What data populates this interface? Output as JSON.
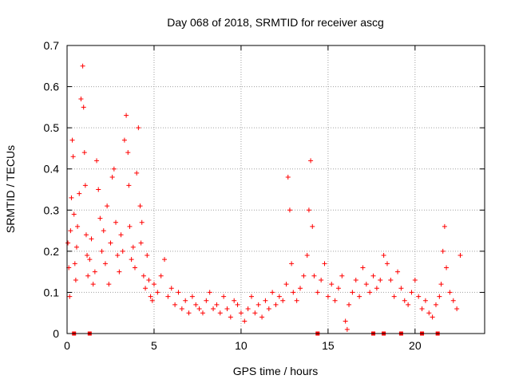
{
  "chart_data": {
    "type": "scatter",
    "title": "Day 068 of 2018, SRMTID for receiver ascg",
    "xlabel": "GPS time / hours",
    "ylabel": "SRMTID / TECUs",
    "xlim": [
      0,
      24
    ],
    "ylim": [
      0,
      0.7
    ],
    "xticks": [
      0,
      5,
      10,
      15,
      20
    ],
    "xtick_labels": [
      "0",
      "5",
      "10",
      "15",
      "20"
    ],
    "yticks": [
      0,
      0.1,
      0.2,
      0.3,
      0.4,
      0.5,
      0.6,
      0.7
    ],
    "ytick_labels": [
      "0",
      "0.1",
      "0.2",
      "0.3",
      "0.4",
      "0.5",
      "0.6",
      "0.7"
    ],
    "grid": true,
    "marker": "+",
    "color": "#ff0000",
    "series": [
      {
        "name": "SRMTID",
        "x": [
          0.05,
          0.1,
          0.15,
          0.2,
          0.25,
          0.3,
          0.35,
          0.4,
          0.45,
          0.5,
          0.55,
          0.6,
          0.7,
          0.8,
          0.9,
          0.95,
          1.0,
          1.05,
          1.1,
          1.15,
          1.2,
          1.3,
          1.4,
          1.5,
          1.6,
          1.7,
          1.8,
          1.9,
          2.0,
          2.1,
          2.2,
          2.3,
          2.4,
          2.5,
          2.6,
          2.7,
          2.8,
          2.9,
          3.0,
          3.1,
          3.2,
          3.3,
          3.4,
          3.5,
          3.55,
          3.6,
          3.7,
          3.8,
          3.9,
          4.0,
          4.1,
          4.2,
          4.25,
          4.3,
          4.4,
          4.5,
          4.6,
          4.7,
          4.8,
          4.9,
          5.0,
          5.2,
          5.4,
          5.6,
          5.8,
          6.0,
          6.2,
          6.4,
          6.6,
          6.8,
          7.0,
          7.2,
          7.4,
          7.6,
          7.8,
          8.0,
          8.2,
          8.4,
          8.6,
          8.8,
          9.0,
          9.2,
          9.4,
          9.6,
          9.8,
          10.0,
          10.2,
          10.4,
          10.6,
          10.8,
          11.0,
          11.2,
          11.4,
          11.6,
          11.8,
          12.0,
          12.2,
          12.4,
          12.6,
          12.7,
          12.8,
          12.9,
          13.0,
          13.2,
          13.4,
          13.6,
          13.8,
          13.9,
          14.0,
          14.1,
          14.2,
          14.4,
          14.6,
          14.8,
          15.0,
          15.2,
          15.4,
          15.6,
          15.8,
          16.0,
          16.1,
          16.2,
          16.4,
          16.6,
          16.8,
          17.0,
          17.2,
          17.4,
          17.6,
          17.8,
          18.0,
          18.2,
          18.4,
          18.6,
          18.8,
          19.0,
          19.2,
          19.4,
          19.6,
          19.8,
          20.0,
          20.2,
          20.4,
          20.6,
          20.8,
          21.0,
          21.2,
          21.4,
          21.5,
          21.6,
          21.7,
          21.8,
          22.0,
          22.2,
          22.4,
          22.6
        ],
        "y": [
          0.22,
          0.16,
          0.09,
          0.25,
          0.33,
          0.47,
          0.43,
          0.29,
          0.17,
          0.13,
          0.21,
          0.26,
          0.34,
          0.57,
          0.65,
          0.55,
          0.44,
          0.36,
          0.24,
          0.19,
          0.14,
          0.18,
          0.23,
          0.12,
          0.15,
          0.42,
          0.35,
          0.28,
          0.2,
          0.25,
          0.17,
          0.31,
          0.12,
          0.22,
          0.38,
          0.4,
          0.27,
          0.19,
          0.15,
          0.24,
          0.2,
          0.47,
          0.53,
          0.44,
          0.36,
          0.26,
          0.18,
          0.21,
          0.16,
          0.39,
          0.5,
          0.31,
          0.22,
          0.27,
          0.14,
          0.11,
          0.19,
          0.13,
          0.09,
          0.08,
          0.12,
          0.1,
          0.14,
          0.18,
          0.09,
          0.11,
          0.07,
          0.1,
          0.06,
          0.08,
          0.05,
          0.09,
          0.07,
          0.06,
          0.05,
          0.08,
          0.1,
          0.06,
          0.07,
          0.05,
          0.09,
          0.06,
          0.04,
          0.08,
          0.07,
          0.05,
          0.03,
          0.06,
          0.09,
          0.05,
          0.07,
          0.04,
          0.08,
          0.06,
          0.1,
          0.07,
          0.09,
          0.08,
          0.12,
          0.38,
          0.3,
          0.17,
          0.1,
          0.08,
          0.11,
          0.14,
          0.19,
          0.3,
          0.42,
          0.26,
          0.14,
          0.1,
          0.13,
          0.17,
          0.09,
          0.12,
          0.08,
          0.11,
          0.14,
          0.03,
          0.01,
          0.07,
          0.1,
          0.13,
          0.09,
          0.16,
          0.12,
          0.1,
          0.14,
          0.11,
          0.13,
          0.19,
          0.17,
          0.13,
          0.09,
          0.15,
          0.11,
          0.08,
          0.07,
          0.1,
          0.13,
          0.09,
          0.06,
          0.08,
          0.05,
          0.04,
          0.07,
          0.09,
          0.12,
          0.2,
          0.26,
          0.16,
          0.1,
          0.08,
          0.06,
          0.19
        ]
      },
      {
        "name": "bottom-markers",
        "x": [
          0.4,
          1.3,
          14.4,
          17.6,
          18.2,
          19.2,
          20.4,
          21.3
        ],
        "y": [
          0,
          0,
          0,
          0,
          0,
          0,
          0,
          0
        ]
      }
    ]
  }
}
